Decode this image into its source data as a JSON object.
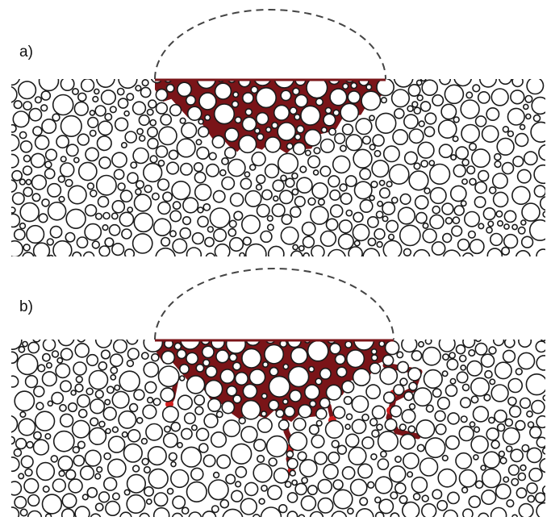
{
  "panels": [
    {
      "label": "a)",
      "deep_fingers": []
    },
    {
      "label": "b)",
      "deep_fingers": [
        "central-downward-finger",
        "right-side-hook-finger"
      ]
    }
  ],
  "colors": {
    "particle_stroke": "#1a1a1a",
    "particle_fill": "#ffffff",
    "background": "#ffffff",
    "fluid": "#7a1418",
    "fluid_highlight": "#d21f1f",
    "dashed_outline": "#444444"
  }
}
